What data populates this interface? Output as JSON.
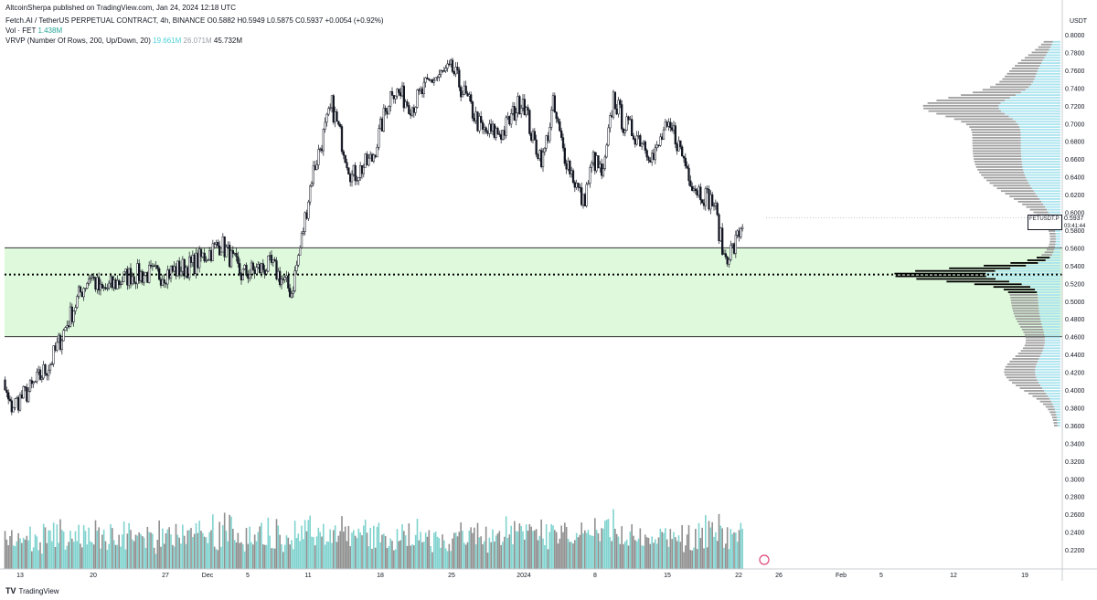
{
  "header": {
    "published": "AltcoinSherpa published on TradingView.com, Jan 24, 2024 12:18 UTC",
    "symbol": "Fetch.AI / TetherUS PERPETUAL CONTRACT, 4h, BINANCE",
    "ohlc": "O0.5882 H0.5949 L0.5875 C0.5937 +0.0054 (+0.92%)",
    "vol_label": "Vol · FET",
    "vol_value": "1.438M",
    "vrvp_label": "VRVP (Number Of Rows, 200, Up/Down, 20)",
    "vrvp_up": "19.661M",
    "vrvp_down": "26.071M",
    "vrvp_total": "45.732M"
  },
  "price_axis": {
    "unit": "USDT",
    "ticks": [
      "0.8000",
      "0.7800",
      "0.7600",
      "0.7400",
      "0.7200",
      "0.7000",
      "0.6800",
      "0.6600",
      "0.6400",
      "0.6200",
      "0.6000",
      "0.5800",
      "0.5600",
      "0.5400",
      "0.5200",
      "0.5000",
      "0.4800",
      "0.4600",
      "0.4400",
      "0.4200",
      "0.4000",
      "0.3800",
      "0.3600",
      "0.3400",
      "0.3200",
      "0.3000",
      "0.2800",
      "0.2600",
      "0.2400",
      "0.2200"
    ]
  },
  "time_axis": {
    "labels": [
      "13",
      "20",
      "27",
      "Dec",
      "5",
      "11",
      "18",
      "25",
      "2024",
      "8",
      "15",
      "22",
      "26",
      "Feb",
      "5",
      "12",
      "19"
    ]
  },
  "last_price": {
    "symbol": "FETUSDT.P",
    "value": "0.5937",
    "countdown": "03:41:44"
  },
  "footer": {
    "brand": "TradingView"
  },
  "colors": {
    "zone_fill": "#dff9dc",
    "profile_up": "#a9e3ee",
    "profile_down": "#9e9e9e",
    "vol_up": "#7fd3cf",
    "vol_down": "#8f8f8f",
    "candle": "#131722"
  },
  "chart_data": {
    "type": "candlestick",
    "timeframe": "4h",
    "x_range": [
      "Nov 10, 2023",
      "Jan 24, 2024"
    ],
    "ylim": [
      0.21,
      0.81
    ],
    "close_path": [
      {
        "date": "Nov 10",
        "close": 0.455
      },
      {
        "date": "Nov 12",
        "close": 0.38
      },
      {
        "date": "Nov 14",
        "close": 0.4
      },
      {
        "date": "Nov 16",
        "close": 0.43
      },
      {
        "date": "Nov 19",
        "close": 0.51
      },
      {
        "date": "Nov 20",
        "close": 0.53
      },
      {
        "date": "Nov 21",
        "close": 0.51
      },
      {
        "date": "Nov 24",
        "close": 0.53
      },
      {
        "date": "Nov 27",
        "close": 0.53
      },
      {
        "date": "Nov 30",
        "close": 0.54
      },
      {
        "date": "Dec 3",
        "close": 0.565
      },
      {
        "date": "Dec 5",
        "close": 0.53
      },
      {
        "date": "Dec 8",
        "close": 0.54
      },
      {
        "date": "Dec 10",
        "close": 0.51
      },
      {
        "date": "Dec 11",
        "close": 0.57
      },
      {
        "date": "Dec 12",
        "close": 0.64
      },
      {
        "date": "Dec 14",
        "close": 0.72
      },
      {
        "date": "Dec 16",
        "close": 0.64
      },
      {
        "date": "Dec 18",
        "close": 0.66
      },
      {
        "date": "Dec 20",
        "close": 0.74
      },
      {
        "date": "Dec 22",
        "close": 0.72
      },
      {
        "date": "Dec 24",
        "close": 0.75
      },
      {
        "date": "Dec 26",
        "close": 0.76
      },
      {
        "date": "Dec 29",
        "close": 0.69
      },
      {
        "date": "Dec 31",
        "close": 0.69
      },
      {
        "date": "Jan 2",
        "close": 0.73
      },
      {
        "date": "Jan 3",
        "close": 0.68
      },
      {
        "date": "Jan 4",
        "close": 0.66
      },
      {
        "date": "Jan 5",
        "close": 0.72
      },
      {
        "date": "Jan 6",
        "close": 0.67
      },
      {
        "date": "Jan 7",
        "close": 0.64
      },
      {
        "date": "Jan 8",
        "close": 0.61
      },
      {
        "date": "Jan 9",
        "close": 0.66
      },
      {
        "date": "Jan 10",
        "close": 0.64
      },
      {
        "date": "Jan 11",
        "close": 0.73
      },
      {
        "date": "Jan 12",
        "close": 0.7
      },
      {
        "date": "Jan 14",
        "close": 0.68
      },
      {
        "date": "Jan 15",
        "close": 0.66
      },
      {
        "date": "Jan 16",
        "close": 0.69
      },
      {
        "date": "Jan 17",
        "close": 0.69
      },
      {
        "date": "Jan 18",
        "close": 0.66
      },
      {
        "date": "Jan 19",
        "close": 0.63
      },
      {
        "date": "Jan 20",
        "close": 0.62
      },
      {
        "date": "Jan 21",
        "close": 0.61
      },
      {
        "date": "Jan 22",
        "close": 0.55
      },
      {
        "date": "Jan 23",
        "close": 0.56
      },
      {
        "date": "Jan 24",
        "close": 0.5937
      }
    ],
    "zones": [
      {
        "type": "support-box",
        "from": 0.46,
        "to": 0.56
      },
      {
        "type": "dotted-line",
        "value": 0.53
      }
    ],
    "volume_profile_poc": 0.53
  }
}
